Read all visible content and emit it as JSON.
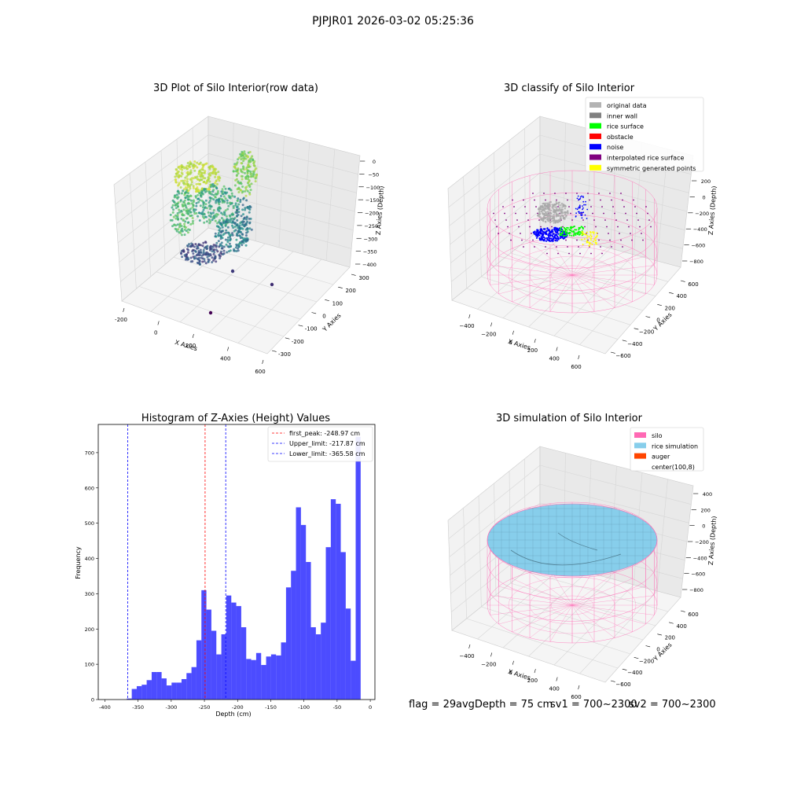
{
  "figure": {
    "suptitle": "PJPJR01 2026-03-02 05:25:36"
  },
  "chart_data": [
    {
      "type": "scatter",
      "title": "3D Plot of Silo Interior(row data)",
      "xlabel": "X Axies",
      "ylabel": "Y Axies",
      "zlabel": "Z Axies (Depth)",
      "x_ticks": [
        "-200",
        "0",
        "200",
        "400",
        "600"
      ],
      "y_ticks": [
        "-300",
        "-200",
        "-100",
        "0",
        "100",
        "200",
        "300"
      ],
      "z_ticks": [
        "0",
        "−50",
        "−100",
        "−150",
        "−200",
        "−250",
        "−300",
        "−350",
        "−400"
      ],
      "colormap": "viridis",
      "outlier_points": [
        {
          "x": 480,
          "y": -60,
          "z": -330
        },
        {
          "x": 520,
          "y": 80,
          "z": -345
        },
        {
          "x": 380,
          "y": -230,
          "z": -400
        }
      ]
    },
    {
      "type": "scatter",
      "title": "3D classify of Silo Interior",
      "xlabel": "X Axies",
      "ylabel": "Y Axies",
      "zlabel": "Z Axies (Depth)",
      "x_ticks": [
        "−400",
        "−200",
        "0",
        "200",
        "400",
        "600"
      ],
      "y_ticks": [
        "−600",
        "−400",
        "−200",
        "0",
        "200",
        "400",
        "600"
      ],
      "z_ticks": [
        "200",
        "0",
        "−200",
        "−400",
        "−600",
        "−800"
      ],
      "legend_position": "top-right",
      "legend": [
        {
          "label": "original data",
          "color": "#b3b3b3"
        },
        {
          "label": "inner wall",
          "color": "#808080"
        },
        {
          "label": "rice surface",
          "color": "#00ff00"
        },
        {
          "label": "obstacle",
          "color": "#ff0000"
        },
        {
          "label": "noise",
          "color": "#0000ff"
        },
        {
          "label": "interpolated rice surface",
          "color": "#800080"
        },
        {
          "label": "symmetric generated points",
          "color": "#ffff00"
        }
      ],
      "silo_color": "#ff69b4"
    },
    {
      "type": "bar",
      "title": "Histogram of Z-Axies (Height) Values",
      "xlabel": "Depth (cm)",
      "ylabel": "Frequency",
      "xlim": [
        -410,
        7
      ],
      "ylim": [
        0,
        780
      ],
      "x_ticks": [
        -400,
        -350,
        -300,
        -250,
        -200,
        -150,
        -100,
        -50,
        0
      ],
      "y_ticks": [
        0,
        100,
        200,
        300,
        400,
        500,
        600,
        700
      ],
      "bar_color": "#0000ff",
      "bin_width": 7.5,
      "bin_start": -367,
      "values": [
        3,
        30,
        38,
        42,
        55,
        78,
        78,
        60,
        40,
        48,
        48,
        58,
        75,
        92,
        168,
        310,
        255,
        195,
        128,
        185,
        295,
        275,
        265,
        205,
        115,
        112,
        132,
        98,
        122,
        128,
        125,
        162,
        318,
        365,
        545,
        495,
        390,
        205,
        185,
        218,
        432,
        568,
        555,
        418,
        258,
        110,
        745
      ],
      "vlines": [
        {
          "label": "first_peak: -248.97 cm",
          "x": -248.97,
          "color": "#ff0000"
        },
        {
          "label": "Upper_limit: -217.87 cm",
          "x": -217.87,
          "color": "#0000ff"
        },
        {
          "label": "Lower_limit: -365.58 cm",
          "x": -365.58,
          "color": "#0000ff"
        }
      ],
      "legend_position": "top-right"
    },
    {
      "type": "surface",
      "title": "3D simulation of Silo Interior",
      "xlabel": "X Axies",
      "ylabel": "Y Axies",
      "zlabel": "Z Axies (Depth)",
      "x_ticks": [
        "−400",
        "−200",
        "0",
        "200",
        "400",
        "600"
      ],
      "y_ticks": [
        "−600",
        "−400",
        "−200",
        "0",
        "200",
        "400",
        "600"
      ],
      "z_ticks": [
        "400",
        "200",
        "0",
        "−200",
        "−400",
        "−600",
        "−800"
      ],
      "legend_position": "top-right",
      "legend": [
        {
          "label": "silo",
          "color": "#ff69b4"
        },
        {
          "label": "rice simulation",
          "color": "#87ceeb"
        },
        {
          "label": "auger",
          "color": "#ff4500"
        },
        {
          "label": "center(100,8)",
          "color": ""
        }
      ]
    }
  ],
  "info": {
    "flag": "flag = 29",
    "avg_depth": "avgDepth = 75 cm",
    "sv1": "sv1 = 700~2300",
    "sv2": "sv2 = 700~2300"
  }
}
